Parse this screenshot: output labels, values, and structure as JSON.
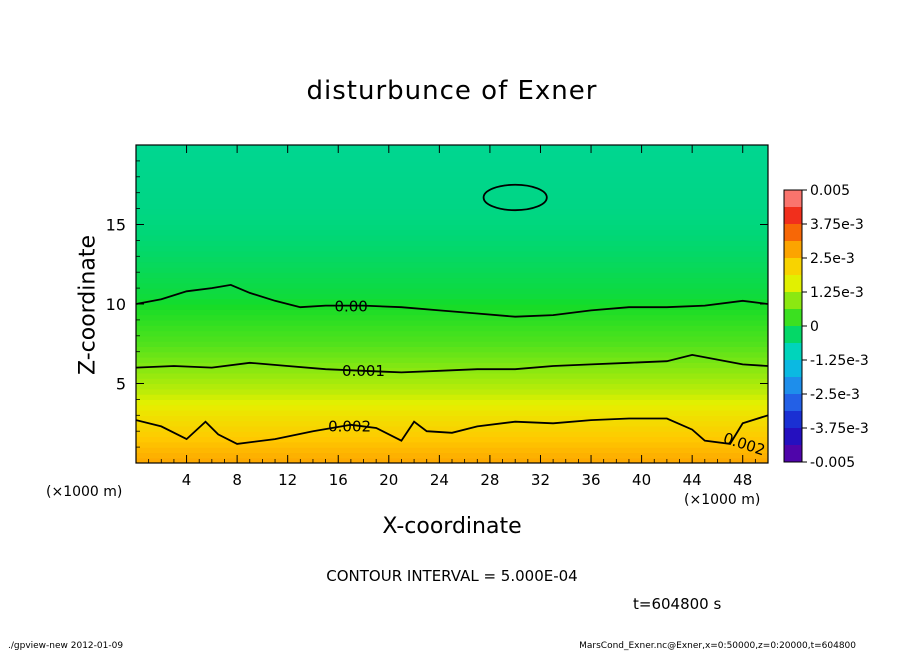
{
  "chart_data": {
    "type": "heatmap",
    "title": "disturbunce of Exner",
    "xlabel": "X-coordinate",
    "ylabel": "Z-coordinate",
    "x_unit": "(×1000 m)",
    "xlim": [
      0,
      50
    ],
    "ylim": [
      0,
      20
    ],
    "x_ticks": [
      4,
      8,
      12,
      16,
      20,
      24,
      28,
      32,
      36,
      40,
      44,
      48
    ],
    "y_ticks": [
      5,
      10,
      15
    ],
    "colorbar": {
      "labels": [
        "0.005",
        "3.75e-3",
        "2.5e-3",
        "1.25e-3",
        "0",
        "-1.25e-3",
        "-2.5e-3",
        "-3.75e-3",
        "-0.005"
      ],
      "range": [
        -0.005,
        0.005
      ]
    },
    "contour_labels": [
      "0.00",
      "0.001",
      "0.002",
      "0.002"
    ],
    "contour_interval_text": "CONTOUR INTERVAL = 5.000E-04",
    "time_text": "t=604800 s",
    "profile": [
      {
        "z": 0,
        "value": 0.0028
      },
      {
        "z": 1.5,
        "value": 0.0024
      },
      {
        "z": 3,
        "value": 0.0019
      },
      {
        "z": 4.5,
        "value": 0.0013
      },
      {
        "z": 6,
        "value": 0.0009
      },
      {
        "z": 7.5,
        "value": 0.0005
      },
      {
        "z": 9,
        "value": 0.0002
      },
      {
        "z": 10.5,
        "value": -0.0001
      },
      {
        "z": 13,
        "value": -0.0003
      },
      {
        "z": 16,
        "value": -0.0005
      },
      {
        "z": 20,
        "value": -0.0006
      }
    ],
    "contours": [
      {
        "label": "0.00",
        "points": [
          [
            0,
            10.0
          ],
          [
            2,
            10.3
          ],
          [
            4,
            10.8
          ],
          [
            6,
            11.0
          ],
          [
            7.5,
            11.2
          ],
          [
            9,
            10.7
          ],
          [
            11,
            10.2
          ],
          [
            13,
            9.8
          ],
          [
            15,
            9.9
          ],
          [
            18,
            9.9
          ],
          [
            21,
            9.8
          ],
          [
            24,
            9.6
          ],
          [
            27,
            9.4
          ],
          [
            30,
            9.2
          ],
          [
            33,
            9.3
          ],
          [
            36,
            9.6
          ],
          [
            39,
            9.8
          ],
          [
            42,
            9.8
          ],
          [
            45,
            9.9
          ],
          [
            48,
            10.2
          ],
          [
            50,
            10.0
          ]
        ]
      },
      {
        "label": "0.001",
        "points": [
          [
            0,
            6.0
          ],
          [
            3,
            6.1
          ],
          [
            6,
            6.0
          ],
          [
            9,
            6.3
          ],
          [
            12,
            6.1
          ],
          [
            15,
            5.9
          ],
          [
            18,
            5.8
          ],
          [
            21,
            5.7
          ],
          [
            24,
            5.8
          ],
          [
            27,
            5.9
          ],
          [
            30,
            5.9
          ],
          [
            33,
            6.1
          ],
          [
            36,
            6.2
          ],
          [
            39,
            6.3
          ],
          [
            42,
            6.4
          ],
          [
            44,
            6.8
          ],
          [
            46,
            6.5
          ],
          [
            48,
            6.2
          ],
          [
            50,
            6.1
          ]
        ]
      },
      {
        "label": "0.002",
        "points": [
          [
            0,
            2.7
          ],
          [
            2,
            2.3
          ],
          [
            4,
            1.5
          ],
          [
            5.5,
            2.6
          ],
          [
            6.5,
            1.8
          ],
          [
            8,
            1.2
          ],
          [
            11,
            1.5
          ],
          [
            14,
            2.0
          ],
          [
            17,
            2.4
          ],
          [
            19,
            2.2
          ],
          [
            21,
            1.4
          ],
          [
            22,
            2.6
          ],
          [
            23,
            2.0
          ],
          [
            25,
            1.9
          ],
          [
            27,
            2.3
          ],
          [
            30,
            2.6
          ],
          [
            33,
            2.5
          ],
          [
            36,
            2.7
          ],
          [
            39,
            2.8
          ],
          [
            42,
            2.8
          ],
          [
            44,
            2.1
          ],
          [
            45,
            1.4
          ],
          [
            47,
            1.2
          ],
          [
            48,
            2.5
          ],
          [
            50,
            3.0
          ]
        ]
      }
    ],
    "closed_contour": {
      "cx": 30,
      "cy": 16.7,
      "rx": 2.5,
      "ry": 0.8
    }
  },
  "footer": {
    "left": "./gpview-new   2012-01-09",
    "right": "MarsCond_Exner.nc@Exner,x=0:50000,z=0:20000,t=604800"
  }
}
